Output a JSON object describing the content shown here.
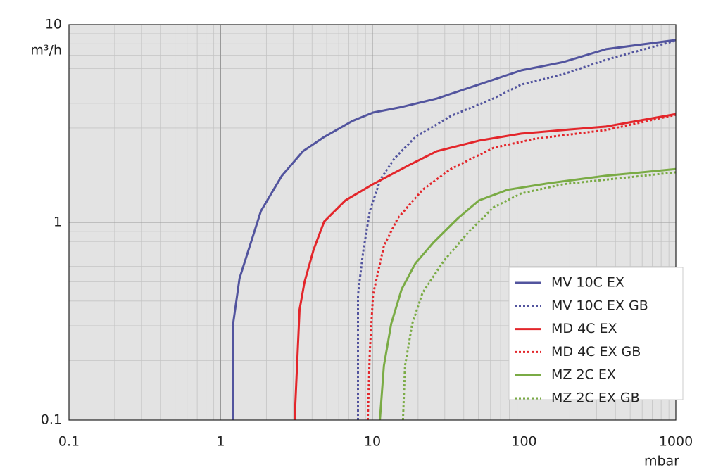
{
  "chart_data": {
    "type": "line",
    "x_label": "mbar",
    "y_label": "m³/h",
    "xscale": "log",
    "yscale": "log",
    "xlim": [
      0.1,
      1000
    ],
    "ylim": [
      0.1,
      10
    ],
    "xticks": [
      0.1,
      1,
      10,
      100,
      1000
    ],
    "yticks": [
      0.1,
      1,
      10
    ],
    "grid": true,
    "legend": "lower right",
    "series": [
      {
        "name": "MV 10C EX",
        "color": "#52549e",
        "style": "solid",
        "x": [
          1.21,
          1.21,
          1.33,
          1.41,
          1.84,
          2.53,
          3.49,
          4.8,
          7.4,
          10.1,
          15.6,
          26.6,
          50.4,
          95.8,
          182,
          346,
          1000
        ],
        "values": [
          0.1,
          0.31,
          0.52,
          0.6,
          1.14,
          1.72,
          2.29,
          2.7,
          3.26,
          3.59,
          3.83,
          4.23,
          4.98,
          5.87,
          6.47,
          7.51,
          8.36
        ]
      },
      {
        "name": "MV 10C EX GB",
        "color": "#52549e",
        "style": "dotted",
        "x": [
          8.03,
          8.03,
          8.67,
          9.61,
          11.3,
          14.0,
          19.2,
          32.8,
          62.7,
          95.8,
          182,
          346,
          1000
        ],
        "values": [
          0.1,
          0.43,
          0.7,
          1.14,
          1.65,
          2.11,
          2.7,
          3.45,
          4.23,
          4.98,
          5.62,
          6.64,
          8.3
        ]
      },
      {
        "name": "MD 4C EX",
        "color": "#e3262b",
        "style": "solid",
        "x": [
          3.07,
          3.14,
          3.31,
          3.57,
          4.1,
          4.81,
          6.63,
          10.1,
          17.3,
          26.6,
          50.4,
          95.8,
          182,
          346,
          1000
        ],
        "values": [
          0.1,
          0.147,
          0.362,
          0.5,
          0.73,
          1.01,
          1.29,
          1.56,
          1.94,
          2.29,
          2.59,
          2.81,
          2.93,
          3.05,
          3.53
        ]
      },
      {
        "name": "MD 4C EX GB",
        "color": "#e3262b",
        "style": "dotted",
        "x": [
          9.32,
          9.61,
          10.1,
          11.9,
          14.7,
          21.4,
          32.8,
          62.7,
          119,
          346,
          1000
        ],
        "values": [
          0.1,
          0.222,
          0.43,
          0.76,
          1.05,
          1.46,
          1.86,
          2.38,
          2.65,
          2.93,
          3.5
        ]
      },
      {
        "name": "MZ 2C EX",
        "color": "#7aab45",
        "style": "solid",
        "x": [
          11.2,
          11.9,
          13.3,
          15.6,
          19.2,
          25.2,
          36.7,
          50.4,
          77.6,
          147,
          346,
          1000
        ],
        "values": [
          0.1,
          0.188,
          0.307,
          0.46,
          0.62,
          0.79,
          1.05,
          1.29,
          1.46,
          1.58,
          1.72,
          1.86
        ]
      },
      {
        "name": "MZ 2C EX GB",
        "color": "#7aab45",
        "style": "dotted",
        "x": [
          15.9,
          16.4,
          18.3,
          21.4,
          29.6,
          42.9,
          62.7,
          95.8,
          182,
          1000
        ],
        "values": [
          0.1,
          0.188,
          0.307,
          0.44,
          0.64,
          0.89,
          1.19,
          1.4,
          1.56,
          1.79
        ]
      }
    ]
  }
}
